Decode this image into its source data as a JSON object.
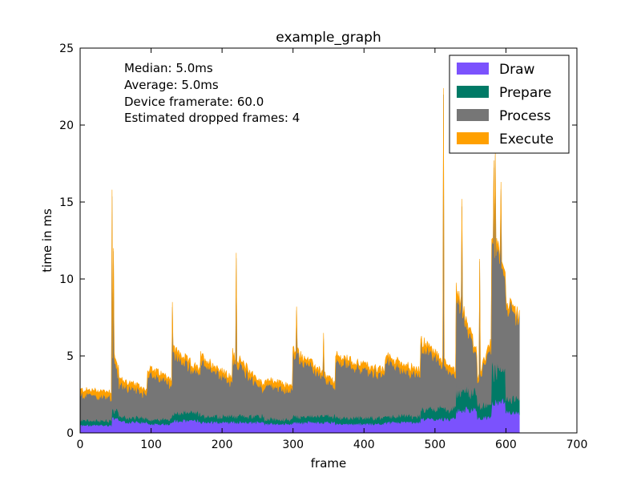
{
  "chart_data": {
    "type": "area",
    "stacked": true,
    "title": "example_graph",
    "xlabel": "frame",
    "ylabel": "time in ms",
    "xlim": [
      0,
      700
    ],
    "ylim": [
      0,
      25
    ],
    "xticks": [
      "0",
      "100",
      "200",
      "300",
      "400",
      "500",
      "600",
      "700"
    ],
    "yticks": [
      "0",
      "5",
      "10",
      "15",
      "20",
      "25"
    ],
    "n_frames": 620,
    "stats": [
      "Median: 5.0ms",
      "Average: 5.0ms",
      "Device framerate: 60.0",
      "Estimated dropped frames: 4"
    ],
    "legend_position": "top-right",
    "series": [
      {
        "name": "Draw",
        "color": "#7b52fd"
      },
      {
        "name": "Prepare",
        "color": "#007a66"
      },
      {
        "name": "Process",
        "color": "#767676"
      },
      {
        "name": "Execute",
        "color": "#ffa000"
      }
    ],
    "segments": [
      {
        "x": [
          0,
          45
        ],
        "draw": 0.5,
        "prepare": 0.3,
        "total_start": 2.8,
        "total_end": 2.7
      },
      {
        "x": [
          45,
          55
        ],
        "draw": 1.0,
        "prepare": 0.5,
        "total_start": 5.5,
        "total_end": 4.0
      },
      {
        "x": [
          55,
          95
        ],
        "draw": 0.7,
        "prepare": 0.3,
        "total_start": 3.5,
        "total_end": 2.8
      },
      {
        "x": [
          95,
          130
        ],
        "draw": 0.6,
        "prepare": 0.3,
        "total_start": 4.2,
        "total_end": 3.5
      },
      {
        "x": [
          130,
          170
        ],
        "draw": 0.8,
        "prepare": 0.5,
        "total_start": 5.5,
        "total_end": 4.0
      },
      {
        "x": [
          170,
          215
        ],
        "draw": 0.7,
        "prepare": 0.4,
        "total_start": 5.0,
        "total_end": 3.5
      },
      {
        "x": [
          215,
          260
        ],
        "draw": 0.7,
        "prepare": 0.4,
        "total_start": 5.2,
        "total_end": 3.0
      },
      {
        "x": [
          260,
          300
        ],
        "draw": 0.6,
        "prepare": 0.3,
        "total_start": 3.5,
        "total_end": 3.0
      },
      {
        "x": [
          300,
          360
        ],
        "draw": 0.7,
        "prepare": 0.4,
        "total_start": 5.5,
        "total_end": 3.2
      },
      {
        "x": [
          360,
          430
        ],
        "draw": 0.6,
        "prepare": 0.4,
        "total_start": 5.0,
        "total_end": 4.0
      },
      {
        "x": [
          430,
          480
        ],
        "draw": 0.7,
        "prepare": 0.4,
        "total_start": 5.0,
        "total_end": 4.0
      },
      {
        "x": [
          480,
          530
        ],
        "draw": 0.9,
        "prepare": 0.7,
        "total_start": 6.0,
        "total_end": 4.0
      },
      {
        "x": [
          530,
          560
        ],
        "draw": 1.5,
        "prepare": 1.2,
        "total_start": 9.5,
        "total_end": 5.0
      },
      {
        "x": [
          560,
          580
        ],
        "draw": 1.0,
        "prepare": 0.8,
        "total_start": 3.5,
        "total_end": 6.0
      },
      {
        "x": [
          580,
          600
        ],
        "draw": 2.0,
        "prepare": 2.0,
        "total_start": 13.0,
        "total_end": 11.0
      },
      {
        "x": [
          600,
          620
        ],
        "draw": 1.3,
        "prepare": 0.8,
        "total_start": 8.5,
        "total_end": 7.5
      }
    ],
    "spikes": [
      {
        "frame": 45,
        "total": 15.8
      },
      {
        "frame": 47,
        "total": 12.0
      },
      {
        "frame": 130,
        "total": 8.5
      },
      {
        "frame": 220,
        "total": 11.7
      },
      {
        "frame": 305,
        "total": 8.2
      },
      {
        "frame": 343,
        "total": 6.5
      },
      {
        "frame": 512,
        "total": 22.4
      },
      {
        "frame": 538,
        "total": 15.2
      },
      {
        "frame": 563,
        "total": 11.3
      },
      {
        "frame": 583,
        "total": 17.7
      },
      {
        "frame": 585,
        "total": 18.3
      },
      {
        "frame": 593,
        "total": 16.3
      }
    ]
  }
}
